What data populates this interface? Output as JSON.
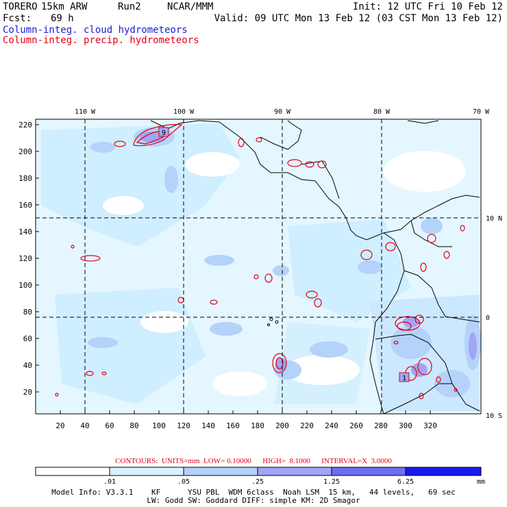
{
  "header": {
    "model": "TORERO",
    "resolution": "15km ARW",
    "run": "Run2",
    "org": "NCAR/MMM",
    "init": "Init: 12 UTC Fri 10 Feb 12",
    "fcst_label": "Fcst:",
    "fcst_value": "69 h",
    "valid": "Valid: 09 UTC Mon 13 Feb 12 (03 CST Mon 13 Feb 12)",
    "field1": "Column-integ. cloud hydrometeors",
    "field2": "Column-integ. precip. hydrometeors"
  },
  "map": {
    "lon_labels": [
      "110 W",
      "100 W",
      "90 W",
      "80 W",
      "70 W"
    ],
    "lat_labels": [
      "10 N",
      "0",
      "10 S"
    ],
    "y_ticks": [
      "220",
      "200",
      "180",
      "160",
      "140",
      "120",
      "100",
      "80",
      "60",
      "40",
      "20"
    ],
    "x_ticks": [
      "20",
      "40",
      "60",
      "80",
      "100",
      "120",
      "140",
      "160",
      "180",
      "200",
      "220",
      "240",
      "260",
      "280",
      "300",
      "320"
    ],
    "box_labels": [
      "9",
      "1"
    ]
  },
  "contour_info": "CONTOURS:  UNITS=mm  LOW= 0.10000      HIGH=  8.1000      INTERVAL=X  3.0000",
  "legend": {
    "levels": [
      ".01",
      ".05",
      ".25",
      "1.25",
      "6.25"
    ],
    "unit": "mm",
    "colors": [
      "#ffffff",
      "#d8f2ff",
      "#b4d2fa",
      "#a0a5f5",
      "#6e6ef0",
      "#3c3cf0",
      "#1010f0"
    ]
  },
  "footer": {
    "line1": "Model Info: V3.3.1    KF      YSU PBL  WDM 6class  Noah LSM  15 km,   44 levels,   69 sec",
    "line2": "LW: Godd SW: Goddard DIFF: simple KM: 2D Smagor"
  }
}
